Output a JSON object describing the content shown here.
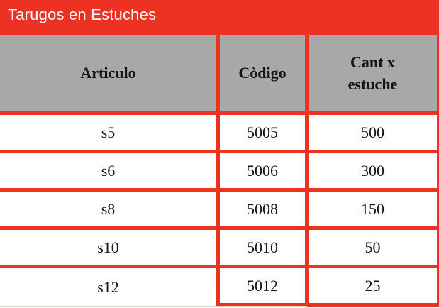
{
  "title": "Tarugos en Estuches",
  "colors": {
    "red": "#ed3224",
    "gray": "#a8a8a8",
    "text": "#151515",
    "title_text": "#ffffff",
    "bottom_line": "#dbdbd4"
  },
  "table": {
    "headers": [
      "Articulo",
      "Còdigo",
      "Cant x estuche"
    ],
    "rows": [
      {
        "articulo": "s5",
        "codigo": "5005",
        "cant": "500"
      },
      {
        "articulo": "s6",
        "codigo": "5006",
        "cant": "300"
      },
      {
        "articulo": "s8",
        "codigo": "5008",
        "cant": "150"
      },
      {
        "articulo": "s10",
        "codigo": "5010",
        "cant": "50"
      },
      {
        "articulo": "s12",
        "codigo": "5012",
        "cant": "25"
      }
    ]
  }
}
